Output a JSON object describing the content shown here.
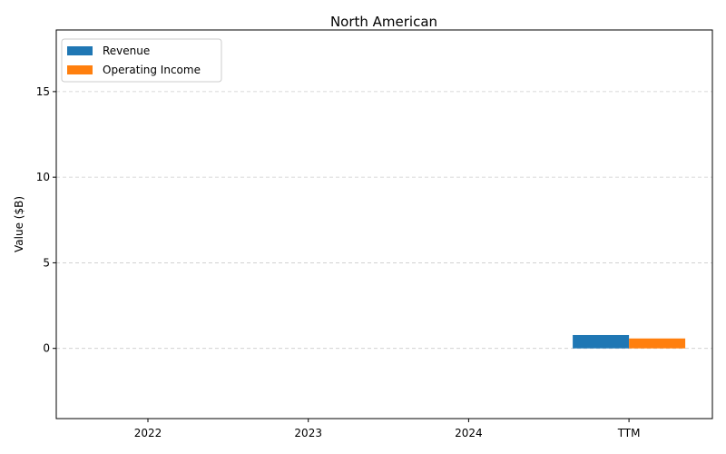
{
  "chart_data": {
    "type": "bar",
    "title": "North American",
    "xlabel": "",
    "ylabel": "Value ($B)",
    "categories": [
      "2022",
      "2023",
      "2024",
      "TTM"
    ],
    "series": [
      {
        "name": "Revenue",
        "color": "#1f77b4",
        "values": [
          0,
          0,
          0,
          0.78
        ]
      },
      {
        "name": "Operating Income",
        "color": "#ff7f0e",
        "values": [
          0,
          0,
          0,
          0.58
        ]
      }
    ],
    "ylim": [
      -4.1,
      18.6
    ],
    "yticks": [
      0,
      5,
      10,
      15
    ],
    "grid": true,
    "legend_position": "top-left"
  }
}
